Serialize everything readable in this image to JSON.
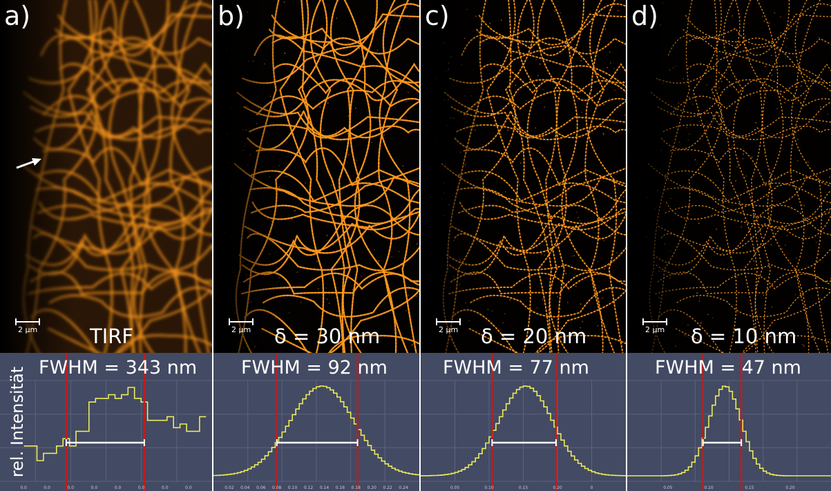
{
  "panels": [
    {
      "letter": "a)",
      "caption": "TIRF",
      "fwhm": "FWHM = 343 nm",
      "scale": "2 µm"
    },
    {
      "letter": "b)",
      "caption": "δ = 30 nm",
      "fwhm": "FWHM = 92 nm",
      "scale": "2 µm"
    },
    {
      "letter": "c)",
      "caption": "δ = 20 nm",
      "fwhm": "FWHM = 77 nm",
      "scale": "2 µm"
    },
    {
      "letter": "d)",
      "caption": "δ = 10 nm",
      "fwhm": "FWHM = 47 nm",
      "scale": "2 µm"
    }
  ],
  "ylabel": "rel. Intensität",
  "colors": {
    "plot_bg": "#434a63",
    "profile": "#ecec5a",
    "marker": "#c01c1c",
    "filament": "#ff9a1e"
  },
  "chart_data": [
    {
      "type": "line",
      "title": "FWHM = 343 nm",
      "ylabel": "rel. Intensität",
      "x": [
        0.05,
        0.1,
        0.15,
        0.2,
        0.25,
        0.3,
        0.35,
        0.4,
        0.45,
        0.5,
        0.55,
        0.6,
        0.65,
        0.7,
        0.75,
        0.8,
        0.85,
        0.9,
        0.95,
        1.0,
        1.05,
        1.1,
        1.15,
        1.2,
        1.25,
        1.3,
        1.35,
        1.4
      ],
      "values": [
        0.2,
        0.2,
        0.0,
        0.1,
        0.1,
        0.2,
        0.3,
        0.2,
        0.4,
        0.4,
        0.8,
        0.85,
        0.85,
        0.9,
        0.85,
        0.9,
        1.0,
        0.85,
        0.8,
        0.55,
        0.55,
        0.55,
        0.6,
        0.45,
        0.5,
        0.4,
        0.4,
        0.6
      ],
      "xticks": [
        "0.0",
        "0.0",
        "0.0",
        "0.0",
        "0.0",
        "0.0",
        "0.0",
        "0.0"
      ],
      "markers": [
        0.35,
        0.95
      ]
    },
    {
      "type": "line",
      "title": "FWHM = 92 nm",
      "x_center": 0.13,
      "sigma": 0.039,
      "x_range": [
        0.0,
        0.25
      ],
      "xticks": [
        "0.02",
        "0.04",
        "0.06",
        "0.08",
        "0.10",
        "0.12",
        "0.14",
        "0.16",
        "0.18",
        "0.20",
        "0.22",
        "0.24"
      ],
      "markers": [
        0.077,
        0.175
      ]
    },
    {
      "type": "line",
      "title": "FWHM = 77 nm",
      "x_center": 0.126,
      "sigma": 0.033,
      "x_range": [
        0.0,
        0.25
      ],
      "xticks": [
        "0.05",
        "0.10",
        "0.15",
        "0.20",
        "0"
      ],
      "markers": [
        0.087,
        0.165
      ]
    },
    {
      "type": "line",
      "title": "FWHM = 47 nm",
      "x_center": 0.118,
      "sigma": 0.02,
      "x_range": [
        0.0,
        0.25
      ],
      "xticks": [
        "0.05",
        "0.10",
        "0.15",
        "0.20"
      ],
      "markers": [
        0.093,
        0.14
      ]
    }
  ]
}
